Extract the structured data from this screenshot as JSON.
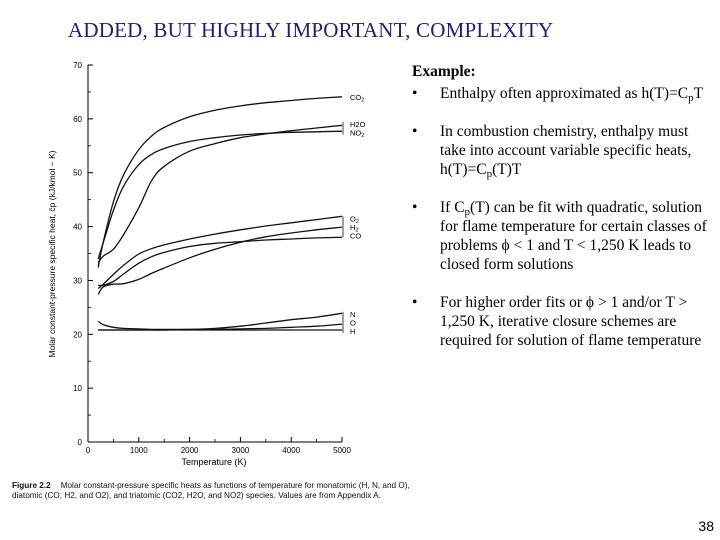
{
  "slide": {
    "title": "ADDED, BUT HIGHLY IMPORTANT, COMPLEXITY",
    "page_number": "38"
  },
  "figure": {
    "caption_label": "Figure 2.2",
    "caption_text": "Molar constant-pressure specific heats as functions of temperature for monatomic (H, N, and O), diatomic (CO, H2, and O2), and triatomic (CO2, H2O, and NO2) species. Values are from Appendix A."
  },
  "example": {
    "heading": "Example:",
    "bullets": [
      {
        "pre": "Enthalpy often approximated as h(T)=C",
        "sub": "p",
        "post": "T"
      },
      {
        "pre": "In combustion chemistry, enthalpy must take into account variable specific heats, h(T)=C",
        "sub": "p",
        "post": "(T)T"
      },
      {
        "pre": "If C",
        "sub": "p",
        "post": "(T) can be fit with quadratic, solution for flame temperature for certain classes of problems ϕ < 1 and T < 1,250 K leads to closed form solutions"
      },
      {
        "pre": "For higher order fits or ϕ > 1 and/or T > 1,250 K, iterative closure schemes are required for solution of flame temperature",
        "sub": "",
        "post": ""
      }
    ]
  },
  "chart_data": {
    "type": "line",
    "title": "",
    "xlabel": "Temperature (K)",
    "ylabel": "Molar constant-pressure specific heat, c̄p (kJ/kmol − K)",
    "xlim": [
      0,
      5000
    ],
    "ylim": [
      0,
      70
    ],
    "x_ticks": [
      0,
      1000,
      2000,
      3000,
      4000,
      5000
    ],
    "y_ticks": [
      0,
      10,
      20,
      30,
      40,
      50,
      60,
      70
    ],
    "grid": false,
    "x": [
      200,
      300,
      500,
      700,
      1000,
      1250,
      1500,
      2000,
      2500,
      3000,
      3500,
      4000,
      4500,
      5000
    ],
    "series": [
      {
        "name": "CO2",
        "values": [
          32.4,
          37.1,
          44.6,
          49.6,
          54.3,
          56.8,
          58.4,
          60.4,
          61.6,
          62.4,
          63.0,
          63.4,
          63.8,
          64.1
        ]
      },
      {
        "name": "H2O",
        "values": [
          33.3,
          34.5,
          35.8,
          38.5,
          43.5,
          48.5,
          51.2,
          54.0,
          55.4,
          56.5,
          57.2,
          57.8,
          58.3,
          58.8
        ]
      },
      {
        "name": "NO2",
        "values": [
          34.0,
          37.0,
          43.0,
          47.5,
          51.5,
          53.4,
          54.5,
          55.8,
          56.5,
          57.0,
          57.3,
          57.5,
          57.6,
          57.7
        ]
      },
      {
        "name": "O2",
        "values": [
          28.5,
          29.3,
          31.1,
          32.8,
          34.9,
          35.9,
          36.6,
          37.7,
          38.6,
          39.4,
          40.1,
          40.7,
          41.3,
          41.9
        ]
      },
      {
        "name": "H2",
        "values": [
          27.4,
          28.8,
          29.3,
          29.4,
          30.2,
          31.3,
          32.3,
          34.2,
          35.8,
          37.1,
          38.1,
          38.8,
          39.4,
          39.9
        ]
      },
      {
        "name": "CO",
        "values": [
          29.1,
          29.1,
          29.8,
          31.2,
          33.2,
          34.4,
          35.2,
          36.3,
          36.9,
          37.2,
          37.5,
          37.7,
          37.9,
          38.0
        ]
      },
      {
        "name": "N",
        "values": [
          20.8,
          20.8,
          20.8,
          20.8,
          20.8,
          20.8,
          20.8,
          20.9,
          21.1,
          21.5,
          22.1,
          22.7,
          23.2,
          23.9
        ]
      },
      {
        "name": "O",
        "values": [
          22.4,
          21.8,
          21.3,
          21.1,
          21.0,
          20.9,
          20.9,
          20.9,
          20.9,
          21.0,
          21.1,
          21.3,
          21.5,
          21.9
        ]
      },
      {
        "name": "H",
        "values": [
          20.8,
          20.8,
          20.8,
          20.8,
          20.8,
          20.8,
          20.8,
          20.8,
          20.8,
          20.8,
          20.8,
          20.8,
          20.8,
          20.8
        ]
      }
    ],
    "legend": "labels at right end of curves",
    "label_groups": [
      {
        "labels": [
          "CO2"
        ]
      },
      {
        "labels": [
          "H2O",
          "NO2"
        ]
      },
      {
        "labels": [
          "O2",
          "H2",
          "CO"
        ]
      },
      {
        "labels": [
          "N",
          "O",
          "H"
        ]
      }
    ]
  }
}
